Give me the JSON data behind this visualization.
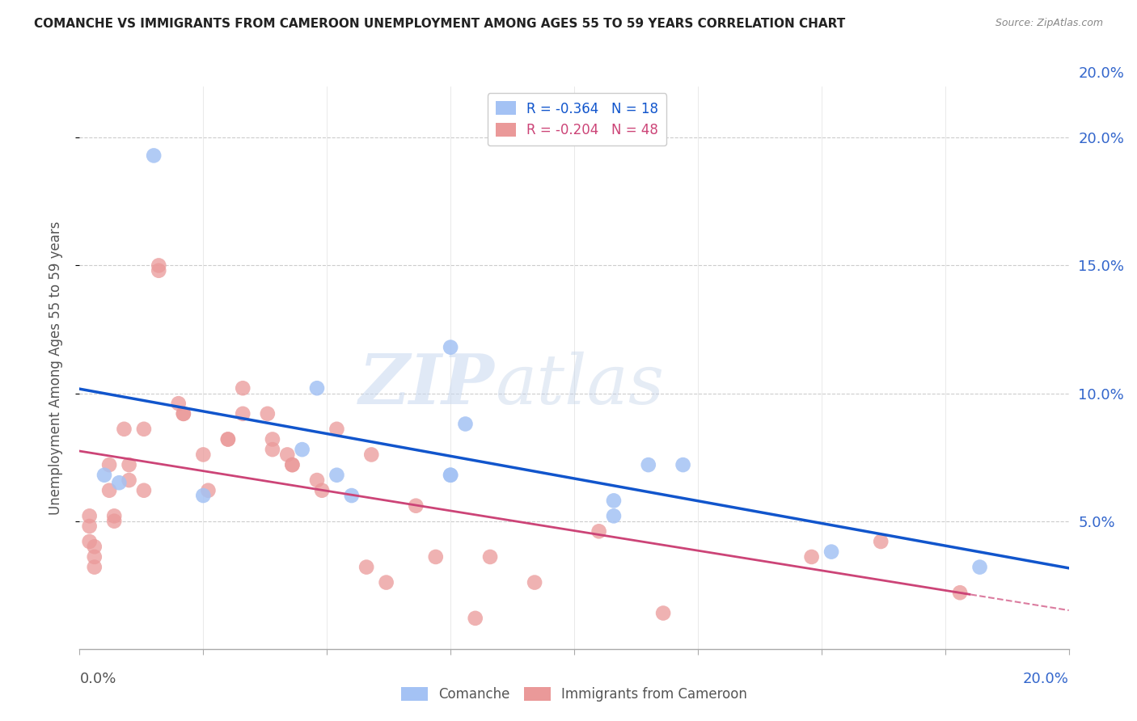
{
  "title": "COMANCHE VS IMMIGRANTS FROM CAMEROON UNEMPLOYMENT AMONG AGES 55 TO 59 YEARS CORRELATION CHART",
  "source": "Source: ZipAtlas.com",
  "ylabel": "Unemployment Among Ages 55 to 59 years",
  "xmin": 0.0,
  "xmax": 0.2,
  "ymin": 0.0,
  "ymax": 0.22,
  "comanche_x": [
    0.008,
    0.015,
    0.025,
    0.048,
    0.052,
    0.055,
    0.005,
    0.045,
    0.075,
    0.078,
    0.075,
    0.108,
    0.108,
    0.075,
    0.115,
    0.122,
    0.152,
    0.182
  ],
  "comanche_y": [
    0.065,
    0.193,
    0.06,
    0.102,
    0.068,
    0.06,
    0.068,
    0.078,
    0.118,
    0.088,
    0.068,
    0.058,
    0.052,
    0.068,
    0.072,
    0.072,
    0.038,
    0.032
  ],
  "cameroon_x": [
    0.002,
    0.002,
    0.002,
    0.003,
    0.003,
    0.003,
    0.006,
    0.006,
    0.007,
    0.007,
    0.009,
    0.01,
    0.01,
    0.013,
    0.013,
    0.016,
    0.016,
    0.02,
    0.021,
    0.021,
    0.025,
    0.026,
    0.03,
    0.03,
    0.033,
    0.033,
    0.038,
    0.039,
    0.039,
    0.042,
    0.043,
    0.043,
    0.048,
    0.049,
    0.052,
    0.058,
    0.059,
    0.062,
    0.068,
    0.072,
    0.08,
    0.083,
    0.092,
    0.105,
    0.118,
    0.148,
    0.162,
    0.178
  ],
  "cameroon_y": [
    0.052,
    0.048,
    0.042,
    0.04,
    0.036,
    0.032,
    0.072,
    0.062,
    0.052,
    0.05,
    0.086,
    0.072,
    0.066,
    0.086,
    0.062,
    0.148,
    0.15,
    0.096,
    0.092,
    0.092,
    0.076,
    0.062,
    0.082,
    0.082,
    0.102,
    0.092,
    0.092,
    0.082,
    0.078,
    0.076,
    0.072,
    0.072,
    0.066,
    0.062,
    0.086,
    0.032,
    0.076,
    0.026,
    0.056,
    0.036,
    0.012,
    0.036,
    0.026,
    0.046,
    0.014,
    0.036,
    0.042,
    0.022
  ],
  "comanche_R": -0.364,
  "comanche_N": 18,
  "cameroon_R": -0.204,
  "cameroon_N": 48,
  "comanche_color": "#a4c2f4",
  "cameroon_color": "#ea9999",
  "comanche_line_color": "#1155cc",
  "cameroon_line_color": "#cc4477",
  "legend_comanche_label": "Comanche",
  "legend_cameroon_label": "Immigrants from Cameroon",
  "watermark_zip": "ZIP",
  "watermark_atlas": "atlas",
  "background_color": "#ffffff",
  "grid_color": "#cccccc"
}
